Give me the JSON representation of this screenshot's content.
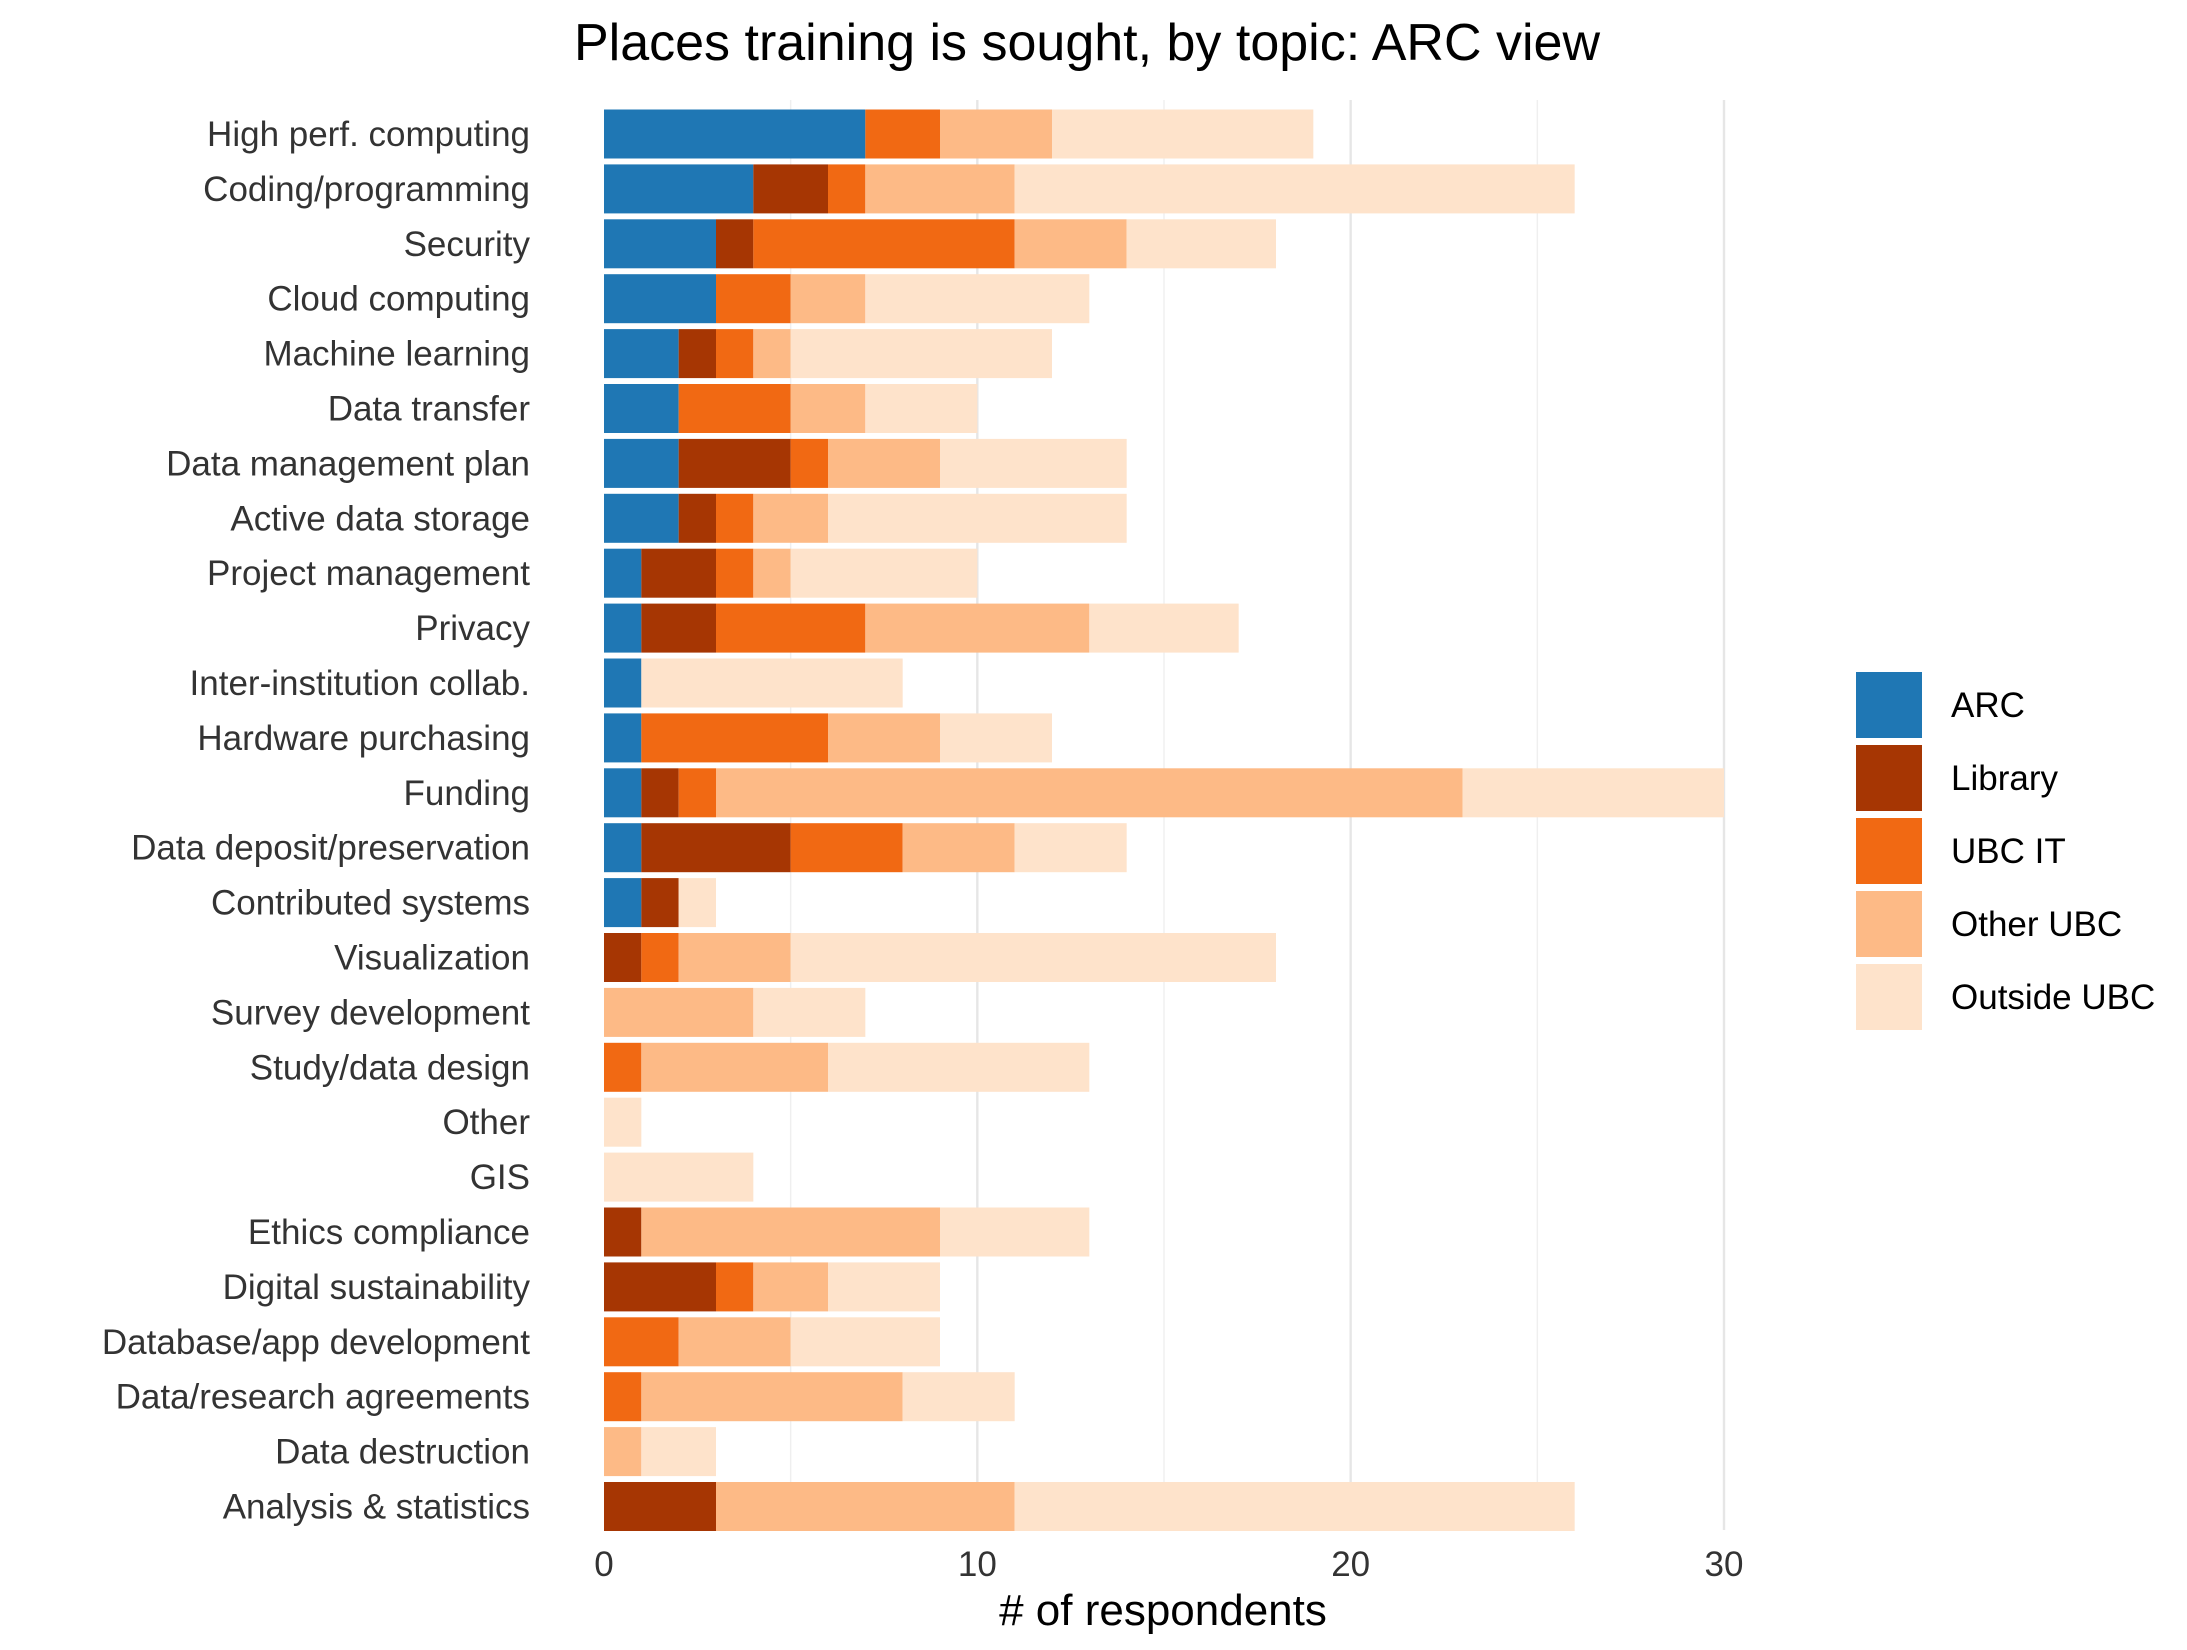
{
  "chart_data": {
    "type": "bar",
    "orientation": "horizontal",
    "stacked": true,
    "title": "Places training is sought, by topic: ARC view",
    "xlabel": "# of respondents",
    "ylabel": "",
    "xlim": [
      0,
      30
    ],
    "xticks": [
      0,
      10,
      20,
      30
    ],
    "grid": true,
    "legend_position": "right",
    "categories": [
      "High perf. computing",
      "Coding/programming",
      "Security",
      "Cloud computing",
      "Machine learning",
      "Data transfer",
      "Data management plan",
      "Active data storage",
      "Project management",
      "Privacy",
      "Inter-institution collab.",
      "Hardware purchasing",
      "Funding",
      "Data deposit/preservation",
      "Contributed systems",
      "Visualization",
      "Survey development",
      "Study/data design",
      "Other",
      "GIS",
      "Ethics compliance",
      "Digital sustainability",
      "Database/app development",
      "Data/research agreements",
      "Data destruction",
      "Analysis & statistics"
    ],
    "series": [
      {
        "name": "ARC",
        "color": "#1f77b4",
        "values": [
          7,
          4,
          3,
          3,
          2,
          2,
          2,
          2,
          1,
          1,
          1,
          1,
          1,
          1,
          1,
          0,
          0,
          0,
          0,
          0,
          0,
          0,
          0,
          0,
          0,
          0
        ]
      },
      {
        "name": "Library",
        "color": "#a63603",
        "values": [
          0,
          2,
          1,
          0,
          1,
          0,
          3,
          1,
          2,
          2,
          0,
          0,
          1,
          4,
          1,
          1,
          0,
          0,
          0,
          0,
          1,
          3,
          0,
          0,
          0,
          3
        ]
      },
      {
        "name": "UBC IT",
        "color": "#f16913",
        "values": [
          2,
          1,
          7,
          2,
          1,
          3,
          1,
          1,
          1,
          4,
          0,
          5,
          1,
          3,
          0,
          1,
          0,
          1,
          0,
          0,
          0,
          1,
          2,
          1,
          0,
          0
        ]
      },
      {
        "name": "Other UBC",
        "color": "#fdba86",
        "values": [
          3,
          4,
          3,
          2,
          1,
          2,
          3,
          2,
          1,
          6,
          0,
          3,
          20,
          3,
          0,
          3,
          4,
          5,
          0,
          0,
          8,
          2,
          3,
          7,
          1,
          8
        ]
      },
      {
        "name": "Outside UBC",
        "color": "#fee3cb",
        "values": [
          7,
          15,
          4,
          6,
          7,
          3,
          5,
          8,
          5,
          4,
          7,
          3,
          7,
          3,
          1,
          13,
          3,
          7,
          1,
          4,
          4,
          3,
          4,
          3,
          2,
          15
        ]
      }
    ]
  }
}
